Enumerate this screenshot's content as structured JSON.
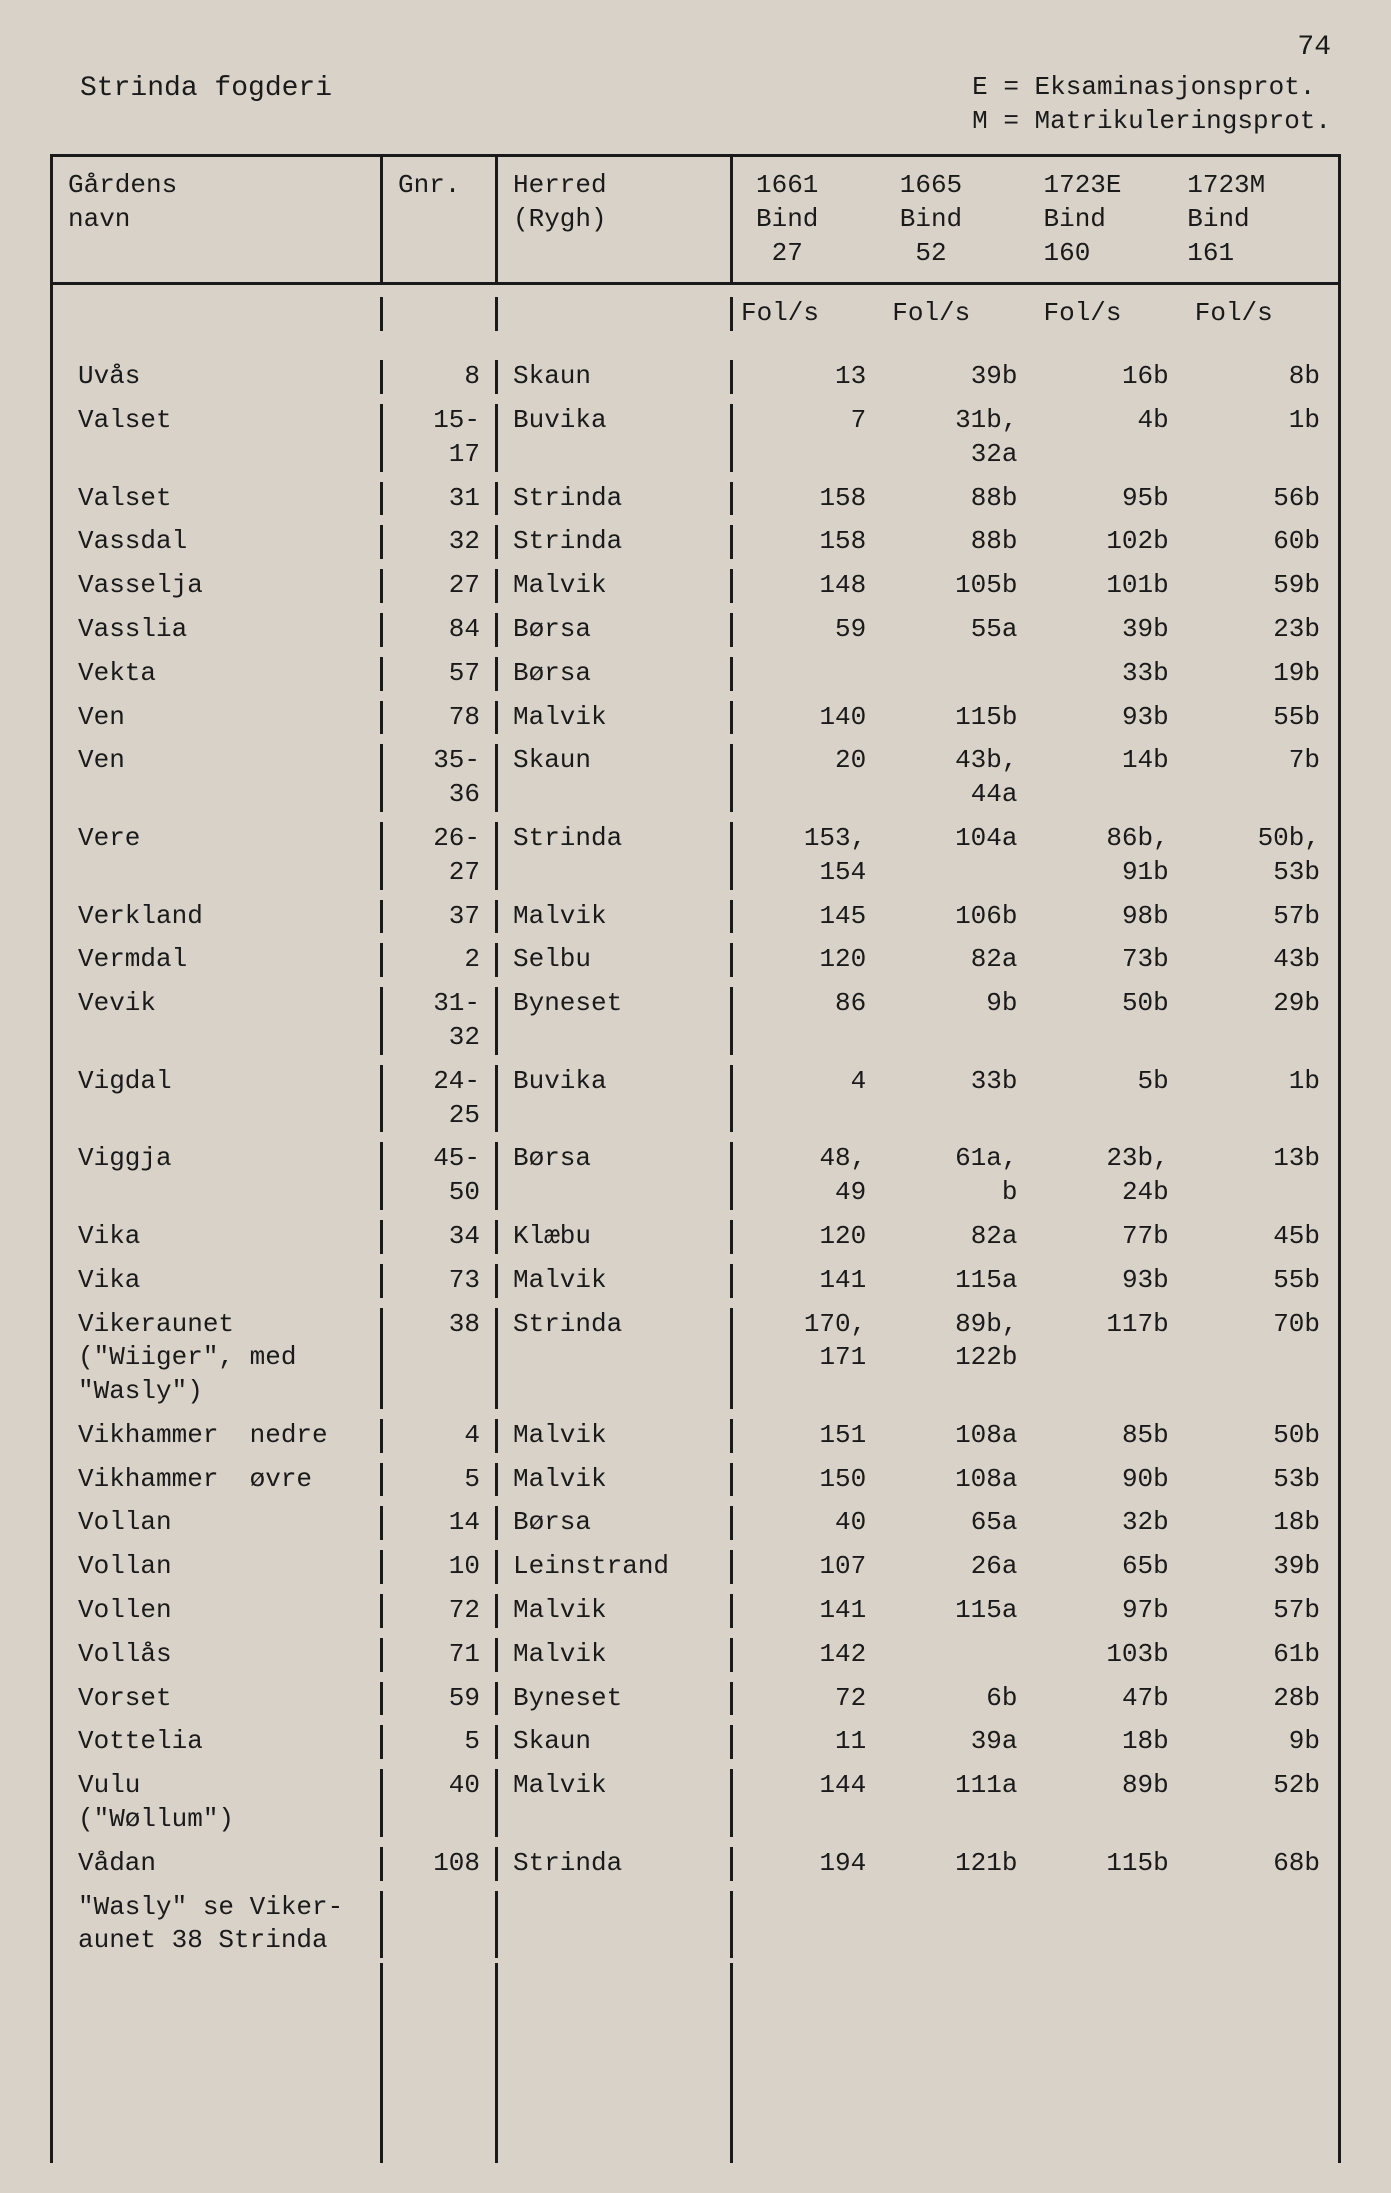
{
  "page_number": "74",
  "header_left": "Strinda fogderi",
  "header_right": "E = Eksaminasjonsprot.\nM = Matrikuleringsprot.",
  "columns": {
    "name": "Gårdens\nnavn",
    "gnr": "Gnr.",
    "herred": "Herred\n(Rygh)",
    "y1": "1661\nBind\n 27",
    "y2": "1665\nBind\n 52",
    "y3": "1723E\nBind\n160",
    "y4": "1723M\nBind\n161"
  },
  "subheader": {
    "s1": "Fol/s",
    "s2": "Fol/s",
    "s3": "Fol/s",
    "s4": "Fol/s"
  },
  "rows": [
    {
      "name": "Uvås",
      "gnr": "8",
      "herred": "Skaun",
      "v1": "13",
      "v2": "39b",
      "v3": "16b",
      "v4": "8b"
    },
    {
      "name": "Valset",
      "gnr": "15-\n17",
      "herred": "Buvika",
      "v1": "7",
      "v2": "31b,\n32a",
      "v3": "4b",
      "v4": "1b"
    },
    {
      "name": "Valset",
      "gnr": "31",
      "herred": "Strinda",
      "v1": "158",
      "v2": "88b",
      "v3": "95b",
      "v4": "56b"
    },
    {
      "name": "Vassdal",
      "gnr": "32",
      "herred": "Strinda",
      "v1": "158",
      "v2": "88b",
      "v3": "102b",
      "v4": "60b"
    },
    {
      "name": "Vasselja",
      "gnr": "27",
      "herred": "Malvik",
      "v1": "148",
      "v2": "105b",
      "v3": "101b",
      "v4": "59b"
    },
    {
      "name": "Vasslia",
      "gnr": "84",
      "herred": "Børsa",
      "v1": "59",
      "v2": "55a",
      "v3": "39b",
      "v4": "23b"
    },
    {
      "name": "Vekta",
      "gnr": "57",
      "herred": "Børsa",
      "v1": "",
      "v2": "",
      "v3": "33b",
      "v4": "19b"
    },
    {
      "name": "Ven",
      "gnr": "78",
      "herred": "Malvik",
      "v1": "140",
      "v2": "115b",
      "v3": "93b",
      "v4": "55b"
    },
    {
      "name": "Ven",
      "gnr": "35-\n36",
      "herred": "Skaun",
      "v1": "20",
      "v2": "43b,\n44a",
      "v3": "14b",
      "v4": "7b"
    },
    {
      "name": "Vere",
      "gnr": "26-\n27",
      "herred": "Strinda",
      "v1": "153,\n154",
      "v2": "104a",
      "v3": "86b,\n91b",
      "v4": "50b,\n53b"
    },
    {
      "name": "Verkland",
      "gnr": "37",
      "herred": "Malvik",
      "v1": "145",
      "v2": "106b",
      "v3": "98b",
      "v4": "57b"
    },
    {
      "name": "Vermdal",
      "gnr": "2",
      "herred": "Selbu",
      "v1": "120",
      "v2": "82a",
      "v3": "73b",
      "v4": "43b"
    },
    {
      "name": "Vevik",
      "gnr": "31-\n32",
      "herred": "Byneset",
      "v1": "86",
      "v2": "9b",
      "v3": "50b",
      "v4": "29b"
    },
    {
      "name": "Vigdal",
      "gnr": "24-\n25",
      "herred": "Buvika",
      "v1": "4",
      "v2": "33b",
      "v3": "5b",
      "v4": "1b"
    },
    {
      "name": "Viggja",
      "gnr": "45-\n50",
      "herred": "Børsa",
      "v1": "48,\n49",
      "v2": "61a,\nb",
      "v3": "23b,\n24b",
      "v4": "13b"
    },
    {
      "name": "Vika",
      "gnr": "34",
      "herred": "Klæbu",
      "v1": "120",
      "v2": "82a",
      "v3": "77b",
      "v4": "45b"
    },
    {
      "name": "Vika",
      "gnr": "73",
      "herred": "Malvik",
      "v1": "141",
      "v2": "115a",
      "v3": "93b",
      "v4": "55b"
    },
    {
      "name": "Vikeraunet\n(\"Wiiger\", med\n\"Wasly\")",
      "gnr": "38",
      "herred": "Strinda",
      "v1": "170,\n171",
      "v2": "89b,\n122b",
      "v3": "117b",
      "v4": "70b"
    },
    {
      "name": "Vikhammer  nedre",
      "gnr": "4",
      "herred": "Malvik",
      "v1": "151",
      "v2": "108a",
      "v3": "85b",
      "v4": "50b"
    },
    {
      "name": "Vikhammer  øvre",
      "gnr": "5",
      "herred": "Malvik",
      "v1": "150",
      "v2": "108a",
      "v3": "90b",
      "v4": "53b"
    },
    {
      "name": "Vollan",
      "gnr": "14",
      "herred": "Børsa",
      "v1": "40",
      "v2": "65a",
      "v3": "32b",
      "v4": "18b"
    },
    {
      "name": "Vollan",
      "gnr": "10",
      "herred": "Leinstrand",
      "v1": "107",
      "v2": "26a",
      "v3": "65b",
      "v4": "39b"
    },
    {
      "name": "Vollen",
      "gnr": "72",
      "herred": "Malvik",
      "v1": "141",
      "v2": "115a",
      "v3": "97b",
      "v4": "57b"
    },
    {
      "name": "Vollås",
      "gnr": "71",
      "herred": "Malvik",
      "v1": "142",
      "v2": "",
      "v3": "103b",
      "v4": "61b"
    },
    {
      "name": "Vorset",
      "gnr": "59",
      "herred": "Byneset",
      "v1": "72",
      "v2": "6b",
      "v3": "47b",
      "v4": "28b"
    },
    {
      "name": "Vottelia",
      "gnr": "5",
      "herred": "Skaun",
      "v1": "11",
      "v2": "39a",
      "v3": "18b",
      "v4": "9b"
    },
    {
      "name": "Vulu\n(\"Wøllum\")",
      "gnr": "40",
      "herred": "Malvik",
      "v1": "144",
      "v2": "111a",
      "v3": "89b",
      "v4": "52b"
    },
    {
      "name": "Vådan",
      "gnr": "108",
      "herred": "Strinda",
      "v1": "194",
      "v2": "121b",
      "v3": "115b",
      "v4": "68b"
    },
    {
      "name": "\"Wasly\" se Viker-\naunet 38 Strinda",
      "gnr": "",
      "herred": "",
      "v1": "",
      "v2": "",
      "v3": "",
      "v4": ""
    }
  ]
}
